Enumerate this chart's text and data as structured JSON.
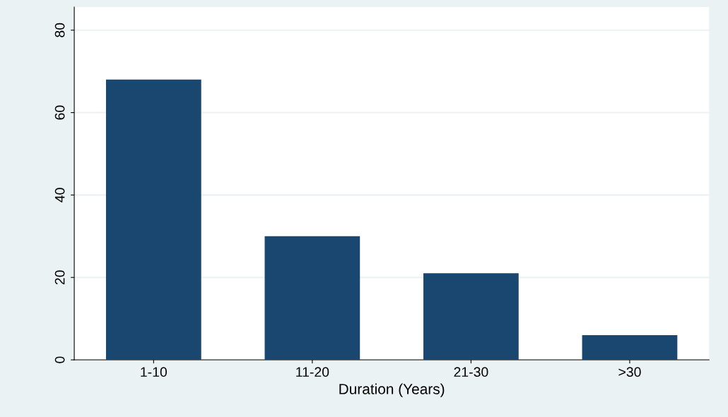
{
  "chart_data": {
    "type": "bar",
    "xlabel": "Duration (Years)",
    "categories": [
      "1-10",
      "11-20",
      "21-30",
      ">30"
    ],
    "values": [
      68,
      30,
      21,
      6
    ],
    "color": "#1a476f",
    "ylim": [
      0,
      85.6
    ],
    "yticks": [
      0,
      20,
      40,
      60,
      80
    ],
    "grid": "y"
  }
}
